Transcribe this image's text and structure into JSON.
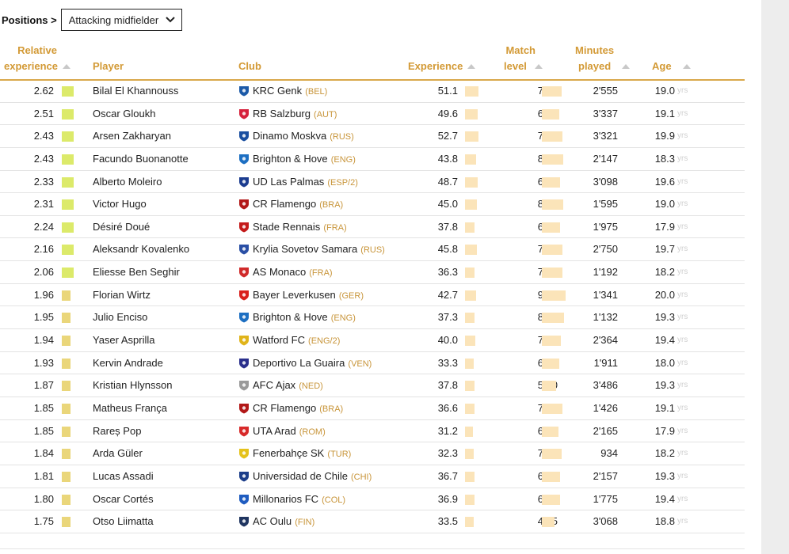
{
  "filter": {
    "label": "Positions >",
    "selected": "Attacking midfielder"
  },
  "columns": {
    "relative_experience": [
      "Relative",
      "experience"
    ],
    "player": "Player",
    "club": "Club",
    "experience": "Experience",
    "match_level": [
      "Match",
      "level"
    ],
    "minutes_played": [
      "Minutes",
      "played"
    ],
    "age": "Age"
  },
  "age_unit": "yrs",
  "colors": {
    "accent": "#d39a36",
    "bar": "#fbe4b9",
    "rel_high": "#dcea6a",
    "rel_low": "#ead67a",
    "sidebar": "#ededed"
  },
  "rows": [
    {
      "rel": "2.62",
      "player": "Bilal El Khannouss",
      "club": "KRC Genk",
      "country": "(BEL)",
      "icon": "genk-crest-icon",
      "color": "#1c5aa8",
      "exp": "51.1",
      "match": "76.6",
      "minutes": "2'555",
      "age": "19.0"
    },
    {
      "rel": "2.51",
      "player": "Oscar Gloukh",
      "club": "RB Salzburg",
      "country": "(AUT)",
      "icon": "salzburg-crest-icon",
      "color": "#d6213c",
      "exp": "49.6",
      "match": "65.5",
      "minutes": "3'337",
      "age": "19.1"
    },
    {
      "rel": "2.43",
      "player": "Arsen Zakharyan",
      "club": "Dinamo Moskva",
      "country": "(RUS)",
      "icon": "dinamo-crest-icon",
      "color": "#1a4fa0",
      "exp": "52.7",
      "match": "78.7",
      "minutes": "3'321",
      "age": "19.9"
    },
    {
      "rel": "2.43",
      "player": "Facundo Buonanotte",
      "club": "Brighton & Hove",
      "country": "(ENG)",
      "icon": "brighton-crest-icon",
      "color": "#1d6fc2",
      "exp": "43.8",
      "match": "82.8",
      "minutes": "2'147",
      "age": "18.3"
    },
    {
      "rel": "2.33",
      "player": "Alberto Moleiro",
      "club": "UD Las Palmas",
      "country": "(ESP/2)",
      "icon": "las-palmas-crest-icon",
      "color": "#1b3c8f",
      "exp": "48.7",
      "match": "69.3",
      "minutes": "3'098",
      "age": "19.6"
    },
    {
      "rel": "2.31",
      "player": "Victor Hugo",
      "club": "CR Flamengo",
      "country": "(BRA)",
      "icon": "flamengo-crest-icon",
      "color": "#b21818",
      "exp": "45.0",
      "match": "82.8",
      "minutes": "1'595",
      "age": "19.0"
    },
    {
      "rel": "2.24",
      "player": "Désiré Doué",
      "club": "Stade Rennais",
      "country": "(FRA)",
      "icon": "rennes-crest-icon",
      "color": "#c41a1a",
      "exp": "37.8",
      "match": "69.3",
      "minutes": "1'975",
      "age": "17.9"
    },
    {
      "rel": "2.16",
      "player": "Aleksandr Kovalenko",
      "club": "Krylia Sovetov Samara",
      "country": "(RUS)",
      "icon": "krylia-crest-icon",
      "color": "#2a4fa5",
      "exp": "45.8",
      "match": "79.4",
      "minutes": "2'750",
      "age": "19.7"
    },
    {
      "rel": "2.06",
      "player": "Eliesse Ben Seghir",
      "club": "AS Monaco",
      "country": "(FRA)",
      "icon": "monaco-crest-icon",
      "color": "#d02a2a",
      "exp": "36.3",
      "match": "78.1",
      "minutes": "1'192",
      "age": "18.2"
    },
    {
      "rel": "1.96",
      "player": "Florian Wirtz",
      "club": "Bayer Leverkusen",
      "country": "(GER)",
      "icon": "leverkusen-crest-icon",
      "color": "#d9201c",
      "exp": "42.7",
      "match": "90.6",
      "minutes": "1'341",
      "age": "20.0"
    },
    {
      "rel": "1.95",
      "player": "Julio Enciso",
      "club": "Brighton & Hove",
      "country": "(ENG)",
      "icon": "brighton-crest-icon",
      "color": "#1d6fc2",
      "exp": "37.3",
      "match": "85.7",
      "minutes": "1'132",
      "age": "19.3"
    },
    {
      "rel": "1.94",
      "player": "Yaser Asprilla",
      "club": "Watford FC",
      "country": "(ENG/2)",
      "icon": "watford-crest-icon",
      "color": "#e0b41a",
      "exp": "40.0",
      "match": "73.8",
      "minutes": "2'364",
      "age": "19.4"
    },
    {
      "rel": "1.93",
      "player": "Kervin Andrade",
      "club": "Deportivo La Guaira",
      "country": "(VEN)",
      "icon": "la-guaira-crest-icon",
      "color": "#2a2f8c",
      "exp": "33.3",
      "match": "66.6",
      "minutes": "1'911",
      "age": "18.0"
    },
    {
      "rel": "1.87",
      "player": "Kristian Hlynsson",
      "club": "AFC Ajax",
      "country": "(NED)",
      "icon": "ajax-crest-icon",
      "color": "#9a9a9a",
      "exp": "37.8",
      "match": "55.0",
      "minutes": "3'486",
      "age": "19.3"
    },
    {
      "rel": "1.85",
      "player": "Matheus França",
      "club": "CR Flamengo",
      "country": "(BRA)",
      "icon": "flamengo-crest-icon",
      "color": "#b21818",
      "exp": "36.6",
      "match": "78.0",
      "minutes": "1'426",
      "age": "19.1"
    },
    {
      "rel": "1.85",
      "player": "Rareș Pop",
      "club": "UTA Arad",
      "country": "(ROM)",
      "icon": "uta-arad-crest-icon",
      "color": "#d82a2a",
      "exp": "31.2",
      "match": "64.3",
      "minutes": "2'165",
      "age": "17.9"
    },
    {
      "rel": "1.84",
      "player": "Arda Güler",
      "club": "Fenerbahçe SK",
      "country": "(TUR)",
      "icon": "fenerbahce-crest-icon",
      "color": "#e5c21a",
      "exp": "32.3",
      "match": "76.7",
      "minutes": "934",
      "age": "18.2"
    },
    {
      "rel": "1.81",
      "player": "Lucas Assadi",
      "club": "Universidad de Chile",
      "country": "(CHI)",
      "icon": "u-de-chile-crest-icon",
      "color": "#1c3e8a",
      "exp": "36.7",
      "match": "69.1",
      "minutes": "2'157",
      "age": "19.3"
    },
    {
      "rel": "1.80",
      "player": "Oscar Cortés",
      "club": "Millonarios FC",
      "country": "(COL)",
      "icon": "millonarios-crest-icon",
      "color": "#1f5cc0",
      "exp": "36.9",
      "match": "69.5",
      "minutes": "1'775",
      "age": "19.4"
    },
    {
      "rel": "1.75",
      "player": "Otso Liimatta",
      "club": "AC Oulu",
      "country": "(FIN)",
      "icon": "oulu-crest-icon",
      "color": "#1f3560",
      "exp": "33.5",
      "match": "49.5",
      "minutes": "3'068",
      "age": "18.8"
    }
  ]
}
